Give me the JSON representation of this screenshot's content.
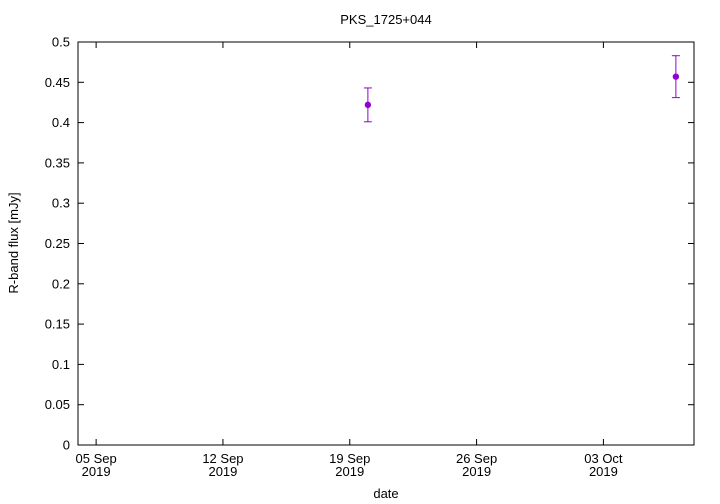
{
  "chart_data": {
    "type": "scatter",
    "title": "PKS_1725+044",
    "x_label": "date",
    "y_label": "R-band flux [mJy]",
    "x": [
      "2019-09-20",
      "2019-10-07"
    ],
    "values": [
      0.422,
      0.457
    ],
    "errors": [
      0.021,
      0.026
    ],
    "color": "#9400d3",
    "xlim": [
      "2019-09-04",
      "2019-10-08"
    ],
    "xticks": [
      {
        "value": "2019-09-05",
        "label": [
          "05 Sep",
          "2019"
        ]
      },
      {
        "value": "2019-09-12",
        "label": [
          "12 Sep",
          "2019"
        ]
      },
      {
        "value": "2019-09-19",
        "label": [
          "19 Sep",
          "2019"
        ]
      },
      {
        "value": "2019-09-26",
        "label": [
          "26 Sep",
          "2019"
        ]
      },
      {
        "value": "2019-10-03",
        "label": [
          "03 Oct",
          "2019"
        ]
      }
    ],
    "ylim": [
      0,
      0.5
    ],
    "yticks": [
      0,
      0.05,
      0.1,
      0.15,
      0.2,
      0.25,
      0.3,
      0.35,
      0.4,
      0.45,
      0.5
    ],
    "grid": false
  }
}
